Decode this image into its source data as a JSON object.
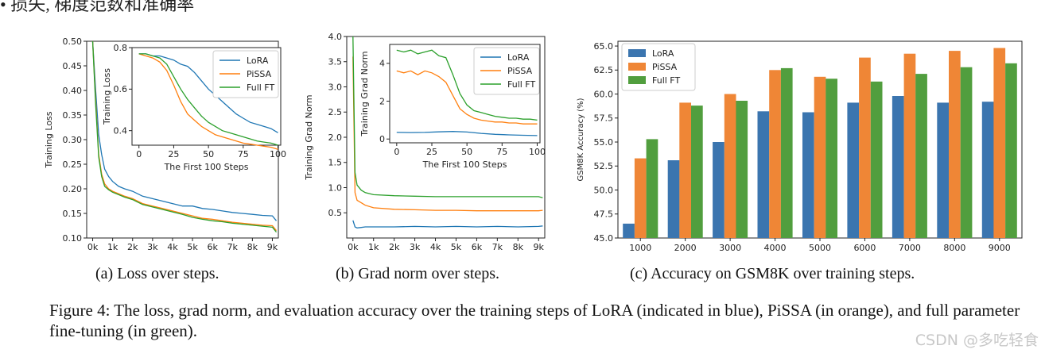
{
  "header_fragment": "• 损失, 梯度范数和准确率",
  "watermark": "CSDN @多吃轻食",
  "captions": {
    "a": "(a) Loss over steps.",
    "b": "(b) Grad norm over steps.",
    "c": "(c) Accuracy on GSM8K over training steps."
  },
  "figure_caption": "Figure 4: The loss, grad norm, and evaluation accuracy over the training steps of LoRA (indicated in blue), PiSSA (in orange), and full parameter fine-tuning (in green).",
  "colors": {
    "lora": "#1f77b4",
    "pissa": "#ff7f0e",
    "full": "#2ca02c",
    "bar_lora": "#3b75af",
    "bar_pissa": "#ef8636",
    "bar_full": "#519e3e"
  },
  "chart_data": [
    {
      "id": "loss",
      "type": "line",
      "title": "",
      "xlabel": "",
      "ylabel": "Training Loss",
      "xlim": [
        -300,
        9300
      ],
      "ylim": [
        0.1,
        0.5
      ],
      "xticks": [
        0,
        1000,
        2000,
        3000,
        4000,
        5000,
        6000,
        7000,
        8000,
        9000
      ],
      "xtick_labels": [
        "0k",
        "1k",
        "2k",
        "3k",
        "4k",
        "5k",
        "6k",
        "7k",
        "8k",
        "9k"
      ],
      "yticks": [
        0.1,
        0.15,
        0.2,
        0.25,
        0.3,
        0.35,
        0.4,
        0.45,
        0.5
      ],
      "ytick_labels": [
        "0.10",
        "0.15",
        "0.20",
        "0.25",
        "0.30",
        "0.35",
        "0.40",
        "0.45",
        "0.50"
      ],
      "series": [
        {
          "name": "LoRA",
          "x": [
            0,
            150,
            300,
            450,
            600,
            800,
            1000,
            1300,
            1600,
            2000,
            2500,
            3000,
            3500,
            4000,
            4500,
            5000,
            5500,
            6000,
            6500,
            7000,
            7500,
            8000,
            8500,
            9000,
            9200
          ],
          "y": [
            0.5,
            0.4,
            0.31,
            0.27,
            0.24,
            0.225,
            0.215,
            0.205,
            0.2,
            0.195,
            0.185,
            0.18,
            0.175,
            0.17,
            0.165,
            0.165,
            0.16,
            0.158,
            0.155,
            0.152,
            0.15,
            0.148,
            0.146,
            0.145,
            0.135
          ]
        },
        {
          "name": "PiSSA",
          "x": [
            0,
            150,
            300,
            450,
            600,
            800,
            1000,
            1300,
            1600,
            2000,
            2500,
            3000,
            3500,
            4000,
            4500,
            5000,
            5500,
            6000,
            6500,
            7000,
            7500,
            8000,
            8500,
            9000,
            9200
          ],
          "y": [
            0.5,
            0.38,
            0.27,
            0.23,
            0.21,
            0.2,
            0.195,
            0.19,
            0.185,
            0.18,
            0.17,
            0.165,
            0.16,
            0.155,
            0.15,
            0.145,
            0.14,
            0.138,
            0.135,
            0.132,
            0.13,
            0.128,
            0.126,
            0.125,
            0.115
          ]
        },
        {
          "name": "Full FT",
          "x": [
            0,
            150,
            300,
            450,
            600,
            800,
            1000,
            1300,
            1600,
            2000,
            2500,
            3000,
            3500,
            4000,
            4500,
            5000,
            5500,
            6000,
            6500,
            7000,
            7500,
            8000,
            8500,
            9000,
            9200
          ],
          "y": [
            0.5,
            0.37,
            0.265,
            0.225,
            0.205,
            0.198,
            0.193,
            0.188,
            0.183,
            0.178,
            0.168,
            0.163,
            0.158,
            0.153,
            0.148,
            0.142,
            0.138,
            0.135,
            0.133,
            0.13,
            0.128,
            0.126,
            0.124,
            0.122,
            0.112
          ]
        }
      ],
      "inset": {
        "xlabel": "The First 100 Steps",
        "ylabel": "Training Loss",
        "xlim": [
          -5,
          102
        ],
        "ylim": [
          0.33,
          0.8
        ],
        "xticks": [
          0,
          25,
          50,
          75,
          100
        ],
        "xtick_labels": [
          "0",
          "25",
          "50",
          "75",
          "100"
        ],
        "yticks": [
          0.4,
          0.6,
          0.8
        ],
        "ytick_labels": [
          "0.4",
          "0.6",
          "0.8"
        ],
        "legend": [
          "LoRA",
          "PiSSA",
          "Full FT"
        ],
        "series": [
          {
            "name": "LoRA",
            "x": [
              0,
              5,
              10,
              15,
              20,
              25,
              30,
              35,
              40,
              45,
              50,
              55,
              60,
              65,
              70,
              75,
              80,
              85,
              90,
              95,
              100
            ],
            "y": [
              0.77,
              0.77,
              0.76,
              0.76,
              0.75,
              0.74,
              0.72,
              0.71,
              0.68,
              0.64,
              0.6,
              0.57,
              0.54,
              0.51,
              0.48,
              0.46,
              0.44,
              0.43,
              0.42,
              0.41,
              0.39
            ]
          },
          {
            "name": "PiSSA",
            "x": [
              0,
              5,
              10,
              15,
              20,
              25,
              30,
              35,
              40,
              45,
              50,
              55,
              60,
              65,
              70,
              75,
              80,
              85,
              90,
              95,
              100
            ],
            "y": [
              0.77,
              0.76,
              0.75,
              0.73,
              0.69,
              0.62,
              0.54,
              0.48,
              0.45,
              0.42,
              0.4,
              0.38,
              0.37,
              0.36,
              0.35,
              0.34,
              0.335,
              0.33,
              0.325,
              0.32,
              0.31
            ]
          },
          {
            "name": "Full FT",
            "x": [
              0,
              5,
              10,
              15,
              20,
              25,
              30,
              35,
              40,
              45,
              50,
              55,
              60,
              65,
              70,
              75,
              80,
              85,
              90,
              95,
              100
            ],
            "y": [
              0.77,
              0.77,
              0.76,
              0.75,
              0.72,
              0.66,
              0.6,
              0.55,
              0.51,
              0.47,
              0.44,
              0.42,
              0.4,
              0.39,
              0.38,
              0.37,
              0.36,
              0.35,
              0.345,
              0.34,
              0.33
            ]
          }
        ]
      }
    },
    {
      "id": "grad",
      "type": "line",
      "title": "",
      "xlabel": "",
      "ylabel": "Training Grad Norm",
      "xlim": [
        -300,
        9300
      ],
      "ylim": [
        0.0,
        4.0
      ],
      "xticks": [
        0,
        1000,
        2000,
        3000,
        4000,
        5000,
        6000,
        7000,
        8000,
        9000
      ],
      "xtick_labels": [
        "0k",
        "1k",
        "2k",
        "3k",
        "4k",
        "5k",
        "6k",
        "7k",
        "8k",
        "9k"
      ],
      "yticks": [
        0.5,
        1.0,
        1.5,
        2.0,
        2.5,
        3.0,
        3.5,
        4.0
      ],
      "ytick_labels": [
        "0.5",
        "1.0",
        "1.5",
        "2.0",
        "2.5",
        "3.0",
        "3.5",
        "4.0"
      ],
      "series": [
        {
          "name": "LoRA",
          "x": [
            0,
            100,
            200,
            400,
            600,
            1000,
            2000,
            3000,
            4000,
            5000,
            6000,
            7000,
            8000,
            9000,
            9200
          ],
          "y": [
            0.35,
            0.22,
            0.2,
            0.21,
            0.22,
            0.22,
            0.22,
            0.23,
            0.22,
            0.23,
            0.22,
            0.23,
            0.22,
            0.23,
            0.24
          ]
        },
        {
          "name": "PiSSA",
          "x": [
            0,
            100,
            200,
            400,
            600,
            1000,
            2000,
            3000,
            4000,
            5000,
            6000,
            7000,
            8000,
            9000,
            9200
          ],
          "y": [
            3.6,
            0.9,
            0.75,
            0.7,
            0.65,
            0.6,
            0.57,
            0.56,
            0.55,
            0.55,
            0.54,
            0.54,
            0.54,
            0.54,
            0.55
          ]
        },
        {
          "name": "Full FT",
          "x": [
            0,
            100,
            200,
            400,
            600,
            1000,
            2000,
            3000,
            4000,
            5000,
            6000,
            7000,
            8000,
            9000,
            9200
          ],
          "y": [
            4.0,
            1.3,
            1.05,
            0.95,
            0.9,
            0.86,
            0.84,
            0.83,
            0.82,
            0.82,
            0.82,
            0.82,
            0.82,
            0.82,
            0.8
          ]
        }
      ],
      "inset": {
        "xlabel": "The First 100 Steps",
        "ylabel": "Training Grad Norm",
        "xlim": [
          -5,
          102
        ],
        "ylim": [
          -0.2,
          5.0
        ],
        "xticks": [
          0,
          25,
          50,
          75,
          100
        ],
        "xtick_labels": [
          "0",
          "25",
          "50",
          "75",
          "100"
        ],
        "yticks": [
          0,
          2,
          4
        ],
        "ytick_labels": [
          "0",
          "2",
          "4"
        ],
        "legend": [
          "LoRA",
          "PiSSA",
          "Full FT"
        ],
        "series": [
          {
            "name": "LoRA",
            "x": [
              0,
              10,
              20,
              30,
              40,
              50,
              60,
              70,
              80,
              90,
              100
            ],
            "y": [
              0.35,
              0.34,
              0.35,
              0.38,
              0.4,
              0.37,
              0.3,
              0.25,
              0.22,
              0.2,
              0.18
            ]
          },
          {
            "name": "PiSSA",
            "x": [
              0,
              5,
              10,
              15,
              20,
              25,
              30,
              35,
              40,
              45,
              50,
              55,
              60,
              65,
              70,
              75,
              80,
              85,
              90,
              95,
              100
            ],
            "y": [
              3.6,
              3.5,
              3.6,
              3.4,
              3.6,
              3.5,
              3.3,
              3.0,
              2.3,
              1.6,
              1.3,
              1.1,
              1.0,
              0.95,
              0.9,
              0.9,
              0.85,
              0.85,
              0.8,
              0.8,
              0.8
            ]
          },
          {
            "name": "Full FT",
            "x": [
              0,
              5,
              10,
              15,
              20,
              25,
              30,
              35,
              40,
              45,
              50,
              55,
              60,
              65,
              70,
              75,
              80,
              85,
              90,
              95,
              100
            ],
            "y": [
              4.7,
              4.6,
              4.7,
              4.5,
              4.6,
              4.7,
              4.4,
              4.3,
              3.4,
              2.4,
              1.8,
              1.5,
              1.4,
              1.3,
              1.2,
              1.15,
              1.1,
              1.1,
              1.05,
              1.05,
              1.0
            ]
          }
        ]
      }
    },
    {
      "id": "acc",
      "type": "bar",
      "title": "",
      "xlabel": "",
      "ylabel": "GSM8K Accuracy (%)",
      "ylim": [
        45.0,
        65.5
      ],
      "yticks": [
        45.0,
        47.5,
        50.0,
        52.5,
        55.0,
        57.5,
        60.0,
        62.5,
        65.0
      ],
      "ytick_labels": [
        "45.0",
        "47.5",
        "50.0",
        "52.5",
        "55.0",
        "57.5",
        "60.0",
        "62.5",
        "65.0"
      ],
      "categories": [
        "1000",
        "2000",
        "3000",
        "4000",
        "5000",
        "6000",
        "7000",
        "8000",
        "9000"
      ],
      "legend": [
        "LoRA",
        "PiSSA",
        "Full FT"
      ],
      "series": [
        {
          "name": "LoRA",
          "values": [
            46.5,
            53.1,
            55.0,
            58.2,
            58.1,
            59.1,
            59.8,
            59.1,
            59.2
          ]
        },
        {
          "name": "PiSSA",
          "values": [
            53.3,
            59.1,
            60.0,
            62.5,
            61.8,
            63.8,
            64.2,
            64.5,
            64.8
          ]
        },
        {
          "name": "Full FT",
          "values": [
            55.3,
            58.8,
            59.3,
            62.7,
            61.6,
            61.3,
            62.1,
            62.8,
            63.2
          ]
        }
      ]
    }
  ]
}
